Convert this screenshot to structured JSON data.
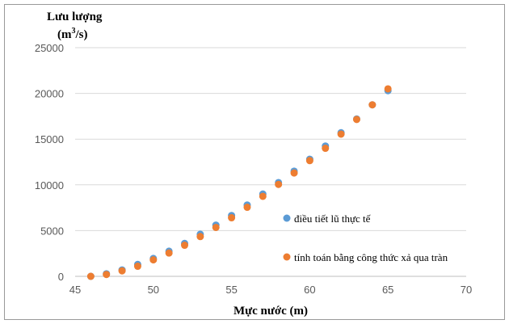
{
  "chart_data": {
    "type": "scatter",
    "ylabel_line1": "Lưu lượng",
    "ylabel_line2_prefix": "(m",
    "ylabel_line2_sup": "3",
    "ylabel_line2_suffix": "/s)",
    "xlabel": "Mực nước (m)",
    "xlim": [
      45,
      70
    ],
    "ylim": [
      0,
      25000
    ],
    "xticks": [
      45,
      50,
      55,
      60,
      65,
      70
    ],
    "yticks": [
      0,
      5000,
      10000,
      15000,
      20000,
      25000
    ],
    "grid": "horizontal",
    "legend_position": "right",
    "series": [
      {
        "name": "điều tiết lũ thực tế",
        "color": "#5b9bd5",
        "x": [
          46,
          47,
          48,
          49,
          50,
          51,
          52,
          53,
          54,
          55,
          56,
          57,
          58,
          59,
          60,
          61,
          62,
          63,
          64,
          65
        ],
        "y": [
          0,
          280,
          700,
          1300,
          1950,
          2750,
          3600,
          4600,
          5600,
          6650,
          7800,
          9000,
          10250,
          11500,
          12800,
          14250,
          15700,
          17200,
          18750,
          20300
        ]
      },
      {
        "name": "tính toán bằng công thức xả qua tràn",
        "color": "#ed7d31",
        "x": [
          46,
          47,
          48,
          49,
          50,
          51,
          52,
          53,
          54,
          55,
          56,
          57,
          58,
          59,
          60,
          61,
          62,
          63,
          64,
          65
        ],
        "y": [
          0,
          200,
          600,
          1100,
          1800,
          2550,
          3400,
          4350,
          5350,
          6400,
          7550,
          8750,
          10050,
          11300,
          12650,
          14000,
          15550,
          17150,
          18750,
          20500
        ]
      }
    ]
  }
}
